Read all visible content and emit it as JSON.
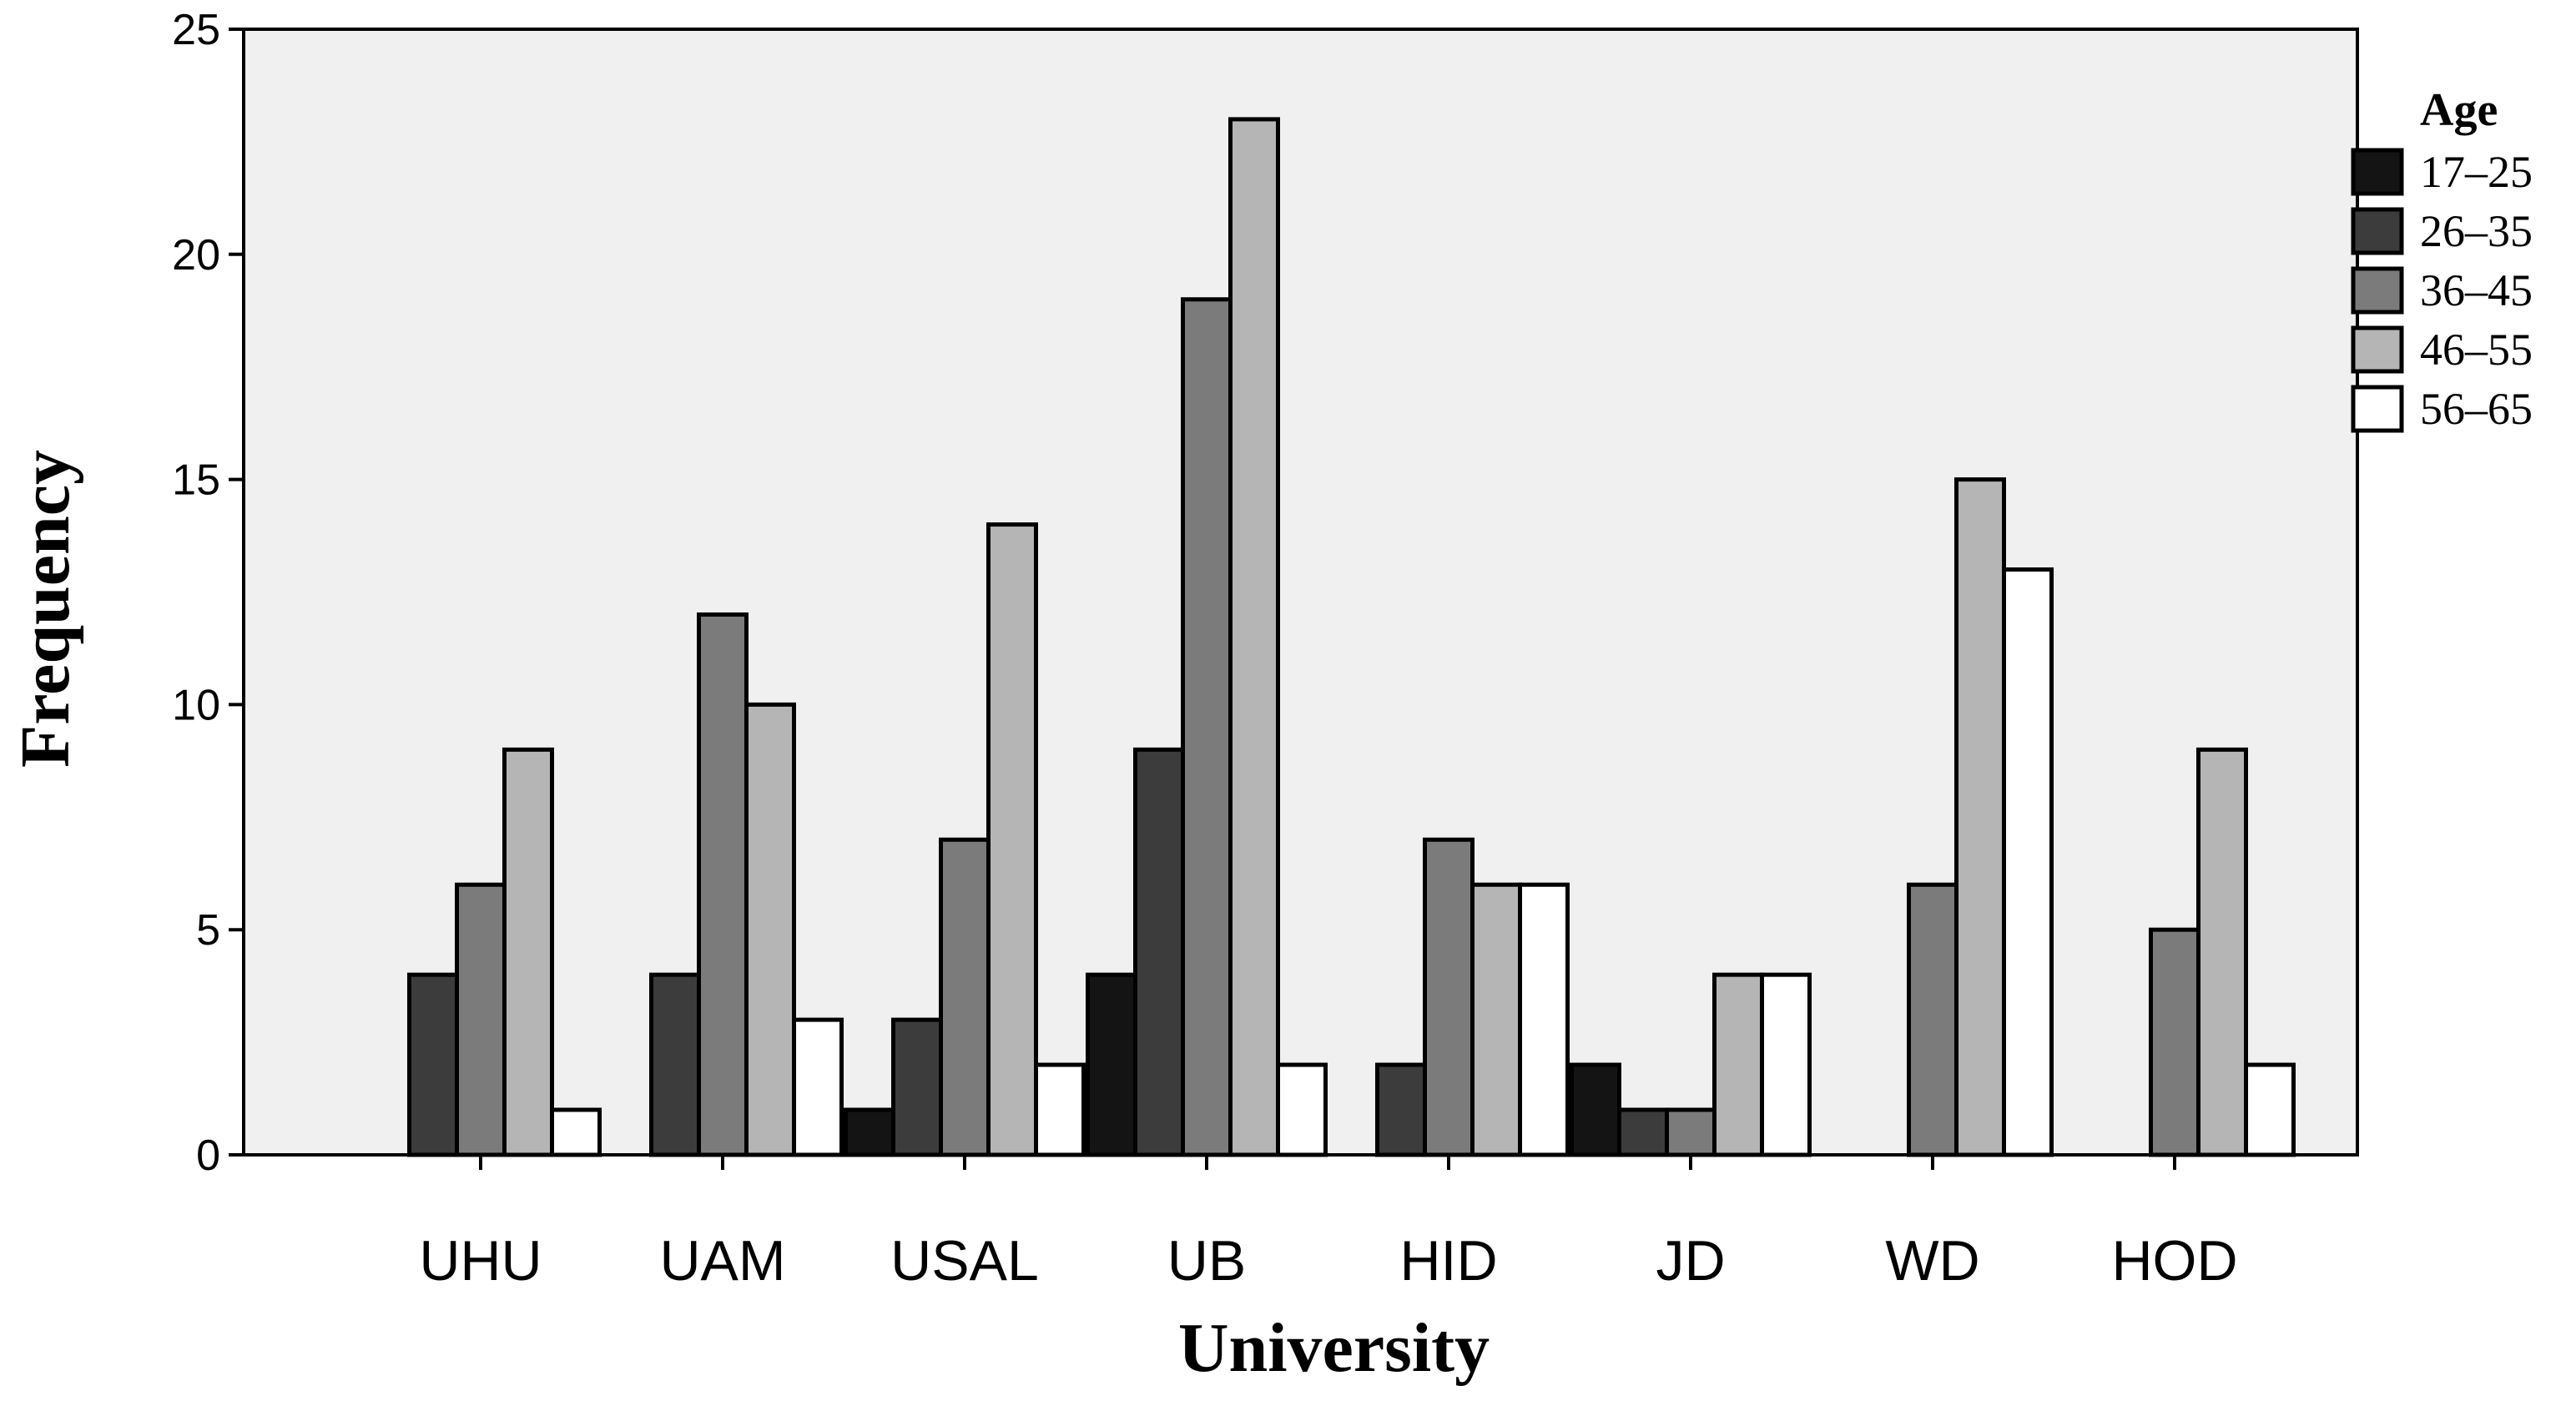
{
  "chart_data": {
    "type": "bar",
    "title": "",
    "xlabel": "University",
    "ylabel": "Frequency",
    "ylim": [
      0,
      25
    ],
    "yticks": [
      0,
      5,
      10,
      15,
      20,
      25
    ],
    "grid": false,
    "legend": {
      "title": "Age",
      "placement": "right"
    },
    "categories": [
      "UHU",
      "UAM",
      "USAL",
      "UB",
      "HID",
      "JD",
      "WD",
      "HOD"
    ],
    "series": [
      {
        "name": "17–25",
        "color": "#141414",
        "values": [
          0,
          0,
          1,
          4,
          0,
          2,
          0,
          0
        ]
      },
      {
        "name": "26–35",
        "color": "#3c3c3c",
        "values": [
          4,
          4,
          3,
          9,
          2,
          1,
          0,
          0
        ]
      },
      {
        "name": "36–45",
        "color": "#7b7b7b",
        "values": [
          6,
          12,
          7,
          19,
          7,
          1,
          6,
          5
        ]
      },
      {
        "name": "46–55",
        "color": "#b5b5b5",
        "values": [
          9,
          10,
          14,
          23,
          6,
          4,
          15,
          9
        ]
      },
      {
        "name": "56–65",
        "color": "#ffffff",
        "values": [
          1,
          3,
          2,
          2,
          6,
          4,
          13,
          2
        ]
      }
    ],
    "colors": {
      "plot_background": "#f0f0f0",
      "outline": "#000000"
    }
  }
}
